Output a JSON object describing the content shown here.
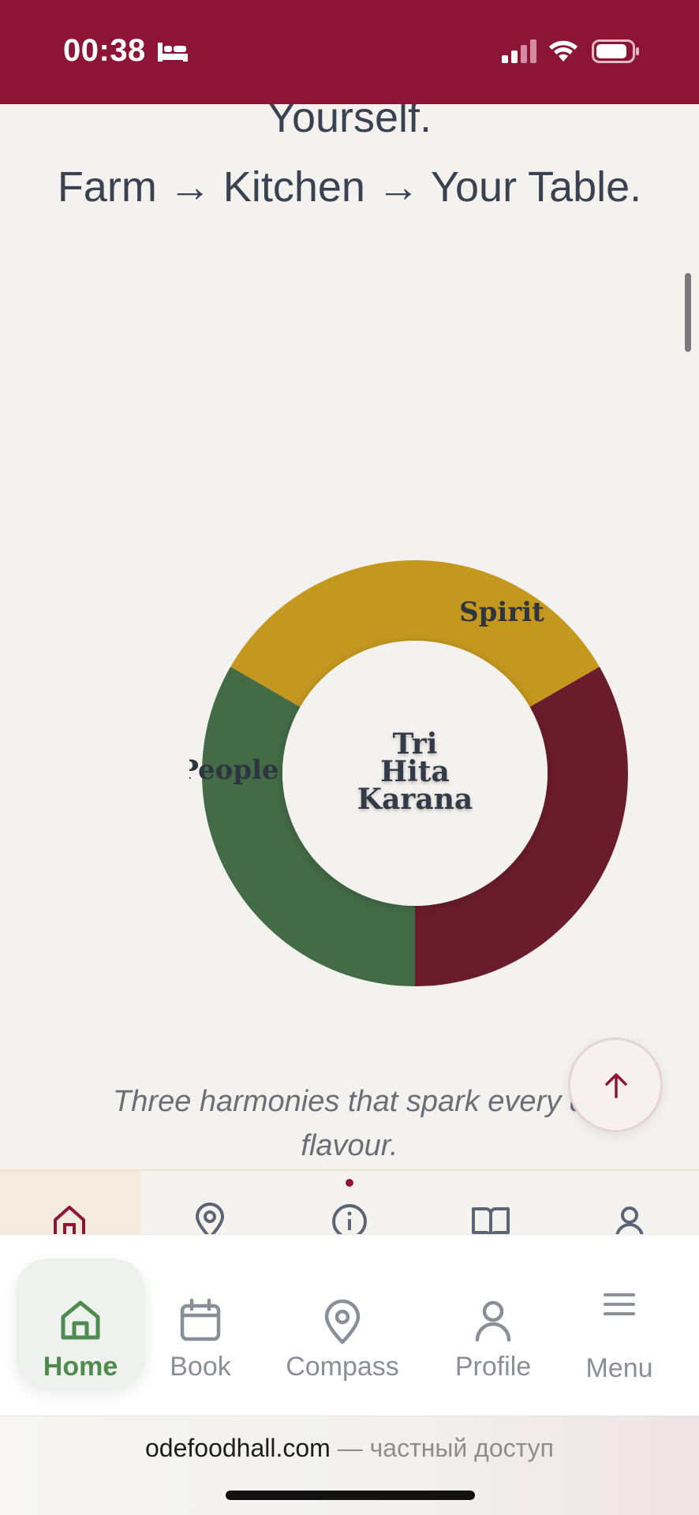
{
  "status_bar": {
    "time": "00:38",
    "background": "#8c1436"
  },
  "hero": {
    "partial_line": "Yourself.",
    "tagline": "Farm → Kitchen → Your Table."
  },
  "chart_data": {
    "type": "pie",
    "donut": true,
    "center_label": [
      "Tri",
      "Hita",
      "Karana"
    ],
    "segments": [
      {
        "label": "Spirit",
        "value": 33.3,
        "color": "#c4981f"
      },
      {
        "label": "",
        "value": 33.3,
        "color": "#6a1c2a"
      },
      {
        "label": "People",
        "value": 33.3,
        "color": "#426b46"
      }
    ]
  },
  "caption": {
    "line1": "Three harmonies that spark every d",
    "line2": "flavour."
  },
  "page_nav": {
    "icons": [
      "home-icon",
      "map-pin-icon",
      "info-icon",
      "book-icon",
      "user-icon"
    ],
    "active": "home-icon",
    "accent": "#8c1436"
  },
  "toolbar": {
    "items": [
      {
        "label": "Home",
        "icon": "home-icon",
        "active": true
      },
      {
        "label": "Book",
        "icon": "calendar-icon"
      },
      {
        "label": "Compass",
        "icon": "map-pin-icon"
      },
      {
        "label": "Profile",
        "icon": "user-icon"
      },
      {
        "label": "Menu",
        "icon": "menu-icon"
      }
    ],
    "active_color": "#4f8a4e"
  },
  "url_bar": {
    "domain": "odefoodhall.com",
    "separator": " — ",
    "status": "частный доступ"
  }
}
